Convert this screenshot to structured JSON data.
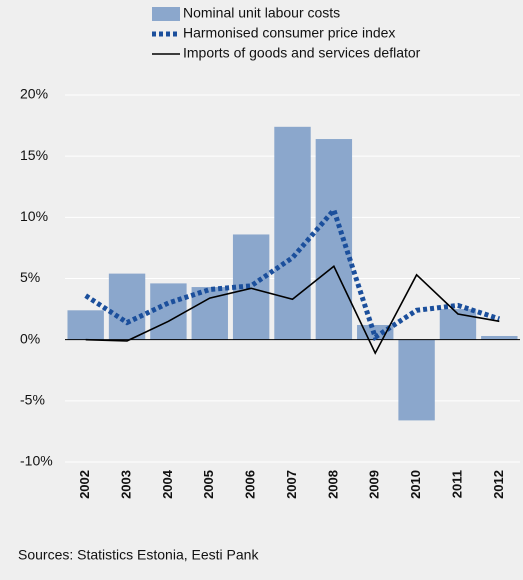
{
  "chart_data": {
    "type": "bar-line",
    "categories": [
      "2002",
      "2003",
      "2004",
      "2005",
      "2006",
      "2007",
      "2008",
      "2009",
      "2010",
      "2011",
      "2012"
    ],
    "series": [
      {
        "name": "Nominal unit labour costs",
        "kind": "bar",
        "color": "#8ba7cc",
        "values": [
          2.4,
          5.4,
          4.6,
          4.3,
          8.6,
          17.4,
          16.4,
          1.2,
          -6.6,
          2.5,
          0.3
        ]
      },
      {
        "name": "Harmonised consumer price index",
        "kind": "dotted",
        "color": "#1b4f9c",
        "values": [
          3.6,
          1.4,
          3.0,
          4.1,
          4.4,
          6.7,
          10.6,
          0.2,
          2.4,
          2.8,
          1.7
        ]
      },
      {
        "name": "Imports of goods and services deflator",
        "kind": "line",
        "color": "#000000",
        "values": [
          0.0,
          -0.1,
          1.5,
          3.4,
          4.2,
          3.3,
          6.0,
          -1.1,
          5.3,
          2.1,
          1.5
        ]
      }
    ],
    "ylim": [
      -10,
      20
    ],
    "yticks": [
      {
        "value": -10,
        "label": "-10%"
      },
      {
        "value": -5,
        "label": "-5%"
      },
      {
        "value": 0,
        "label": "0%"
      },
      {
        "value": 5,
        "label": "5%"
      },
      {
        "value": 10,
        "label": "10%"
      },
      {
        "value": 15,
        "label": "15%"
      },
      {
        "value": 20,
        "label": "20%"
      }
    ],
    "grid": true,
    "source": "Sources: Statistics Estonia, Eesti Pank"
  }
}
